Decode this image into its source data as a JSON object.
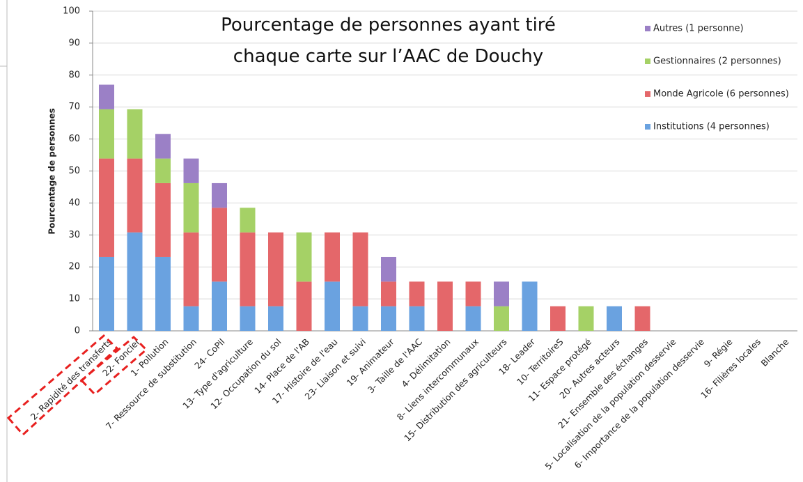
{
  "chart_data": {
    "type": "stacked_bar",
    "title": "Pourcentage de personnes ayant tiré chaque carte sur l’AAC de Douchy",
    "y_label": "Pourcentage de personnes",
    "categories": [
      "2- Rapidité des transferts",
      "22- Foncier",
      "1- Pollution",
      "7- Ressource de substitution",
      "24- CoPil",
      "13- Type d'agriculture",
      "12- Occupation du sol",
      "14- Place de l'AB",
      "17- Histoire de l'eau",
      "23- Liaison et suivi",
      "19- Animateur",
      "3- Taille de l'AAC",
      "4- Délimitation",
      "8- Liens intercommunaux",
      "15- Distribution des agriculteurs",
      "18- Leader",
      "10- TerritoireS",
      "11- Espace protégé",
      "20- Autres acteurs",
      "21- Ensemble des échanges",
      "5- Localisation de la population desservie",
      "6- Importance de la population desservie",
      "9- Régie",
      "16- Filières locales",
      "Blanche"
    ],
    "series": [
      {
        "name": "Institutions (4 personnes)",
        "color": "#6aa2e0",
        "values": [
          23.1,
          30.8,
          23.1,
          7.7,
          15.4,
          7.7,
          7.7,
          0,
          15.4,
          7.7,
          7.7,
          7.7,
          0,
          7.7,
          0,
          15.4,
          0,
          0,
          7.7,
          0,
          0,
          0,
          0,
          0,
          0
        ]
      },
      {
        "name": "Monde Agricole (6 personnes)",
        "color": "#e4676a",
        "values": [
          30.8,
          23.1,
          23.1,
          23.1,
          23.1,
          23.1,
          23.1,
          15.4,
          15.4,
          23.1,
          7.7,
          7.7,
          15.4,
          7.7,
          0,
          0,
          7.7,
          0,
          0,
          7.7,
          0,
          0,
          0,
          0,
          0
        ]
      },
      {
        "name": "Gestionnaires (2 personnes)",
        "color": "#a5d166",
        "values": [
          15.4,
          15.4,
          7.7,
          15.4,
          0,
          7.7,
          0,
          15.4,
          0,
          0,
          0,
          0,
          0,
          0,
          7.7,
          0,
          0,
          7.7,
          0,
          0,
          0,
          0,
          0,
          0,
          0
        ]
      },
      {
        "name": "Autres (1 personne)",
        "color": "#9b80c6",
        "values": [
          7.7,
          0,
          7.7,
          7.7,
          7.7,
          0,
          0,
          0,
          0,
          0,
          7.7,
          0,
          0,
          0,
          7.7,
          0,
          0,
          0,
          0,
          0,
          0,
          0,
          0,
          0,
          0
        ]
      }
    ],
    "ylim": [
      0,
      100
    ],
    "yticks": [
      0,
      10,
      20,
      30,
      40,
      50,
      60,
      70,
      80,
      90,
      100
    ],
    "grid": true
  }
}
